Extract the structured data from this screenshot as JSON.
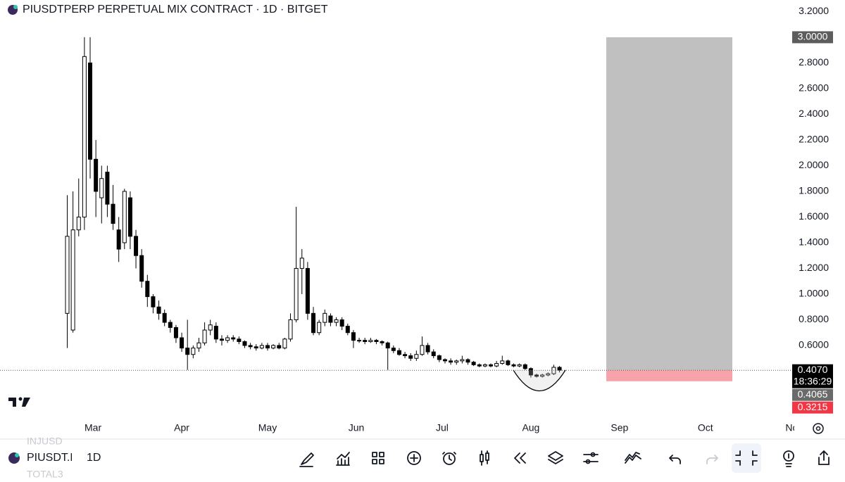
{
  "chart_data": {
    "type": "candlestick",
    "title": "PIUSDTPERP PERPETUAL MIX CONTRACT · 1D · BITGET",
    "x": [
      -9,
      -7,
      -5,
      -3,
      -1,
      1,
      3,
      5,
      7,
      9,
      11,
      13,
      15,
      17,
      19,
      21,
      23,
      25,
      27,
      29,
      31,
      33,
      35,
      37,
      39,
      41,
      43,
      45,
      47,
      49,
      51,
      53,
      55,
      57,
      59,
      61,
      63,
      65,
      67,
      69,
      71,
      73,
      75,
      77,
      79,
      81,
      83,
      85,
      87,
      89,
      91,
      93,
      95,
      97,
      99,
      101,
      103,
      105,
      107,
      109,
      111,
      113,
      115,
      117,
      119,
      121,
      123,
      125,
      127,
      129,
      131,
      133,
      135,
      137,
      139,
      141,
      143,
      145,
      147,
      149,
      151,
      153,
      155,
      157,
      159,
      161,
      163
    ],
    "open": [
      0.85,
      0.72,
      1.5,
      1.6,
      2.8,
      2.05,
      1.75,
      1.95,
      1.7,
      1.5,
      1.4,
      1.75,
      1.45,
      1.3,
      1.1,
      0.98,
      0.9,
      0.85,
      0.78,
      0.74,
      0.66,
      0.58,
      0.53,
      0.58,
      0.62,
      0.72,
      0.75,
      0.65,
      0.64,
      0.66,
      0.65,
      0.63,
      0.6,
      0.59,
      0.58,
      0.6,
      0.58,
      0.6,
      0.58,
      0.65,
      0.8,
      1.2,
      1.2,
      0.85,
      0.7,
      0.78,
      0.83,
      0.78,
      0.8,
      0.75,
      0.7,
      0.64,
      0.64,
      0.63,
      0.64,
      0.63,
      0.62,
      0.58,
      0.56,
      0.53,
      0.52,
      0.5,
      0.53,
      0.6,
      0.55,
      0.52,
      0.49,
      0.48,
      0.47,
      0.48,
      0.49,
      0.47,
      0.45,
      0.44,
      0.45,
      0.44,
      0.46,
      0.48,
      0.45,
      0.44,
      0.45,
      0.42,
      0.37,
      0.36,
      0.37,
      0.38,
      0.43
    ],
    "high": [
      1.77,
      1.8,
      1.9,
      3.0,
      3.0,
      2.2,
      2.0,
      2.0,
      1.85,
      1.6,
      1.82,
      1.8,
      1.5,
      1.35,
      1.15,
      1.0,
      0.95,
      0.88,
      0.8,
      0.76,
      0.7,
      0.8,
      0.6,
      0.66,
      0.78,
      0.8,
      0.78,
      0.68,
      0.68,
      0.68,
      0.67,
      0.64,
      0.62,
      0.61,
      0.62,
      0.62,
      0.61,
      0.62,
      0.66,
      0.85,
      1.68,
      1.35,
      1.25,
      0.9,
      0.8,
      0.88,
      0.85,
      0.82,
      0.82,
      0.77,
      0.72,
      0.66,
      0.66,
      0.66,
      0.65,
      0.64,
      0.63,
      0.6,
      0.58,
      0.55,
      0.54,
      0.56,
      0.67,
      0.62,
      0.57,
      0.53,
      0.5,
      0.5,
      0.49,
      0.52,
      0.5,
      0.48,
      0.46,
      0.46,
      0.46,
      0.48,
      0.52,
      0.49,
      0.46,
      0.46,
      0.46,
      0.43,
      0.38,
      0.38,
      0.39,
      0.45,
      0.44
    ],
    "low": [
      0.58,
      0.7,
      1.45,
      1.5,
      1.9,
      1.6,
      1.55,
      1.6,
      1.5,
      1.25,
      1.35,
      1.35,
      1.2,
      1.05,
      0.9,
      0.85,
      0.8,
      0.75,
      0.7,
      0.62,
      0.55,
      0.41,
      0.5,
      0.55,
      0.6,
      0.68,
      0.62,
      0.6,
      0.62,
      0.63,
      0.61,
      0.58,
      0.57,
      0.56,
      0.57,
      0.56,
      0.57,
      0.57,
      0.57,
      0.63,
      0.78,
      1.0,
      0.8,
      0.68,
      0.68,
      0.75,
      0.75,
      0.75,
      0.72,
      0.68,
      0.58,
      0.62,
      0.61,
      0.62,
      0.61,
      0.6,
      0.41,
      0.54,
      0.52,
      0.5,
      0.48,
      0.48,
      0.52,
      0.53,
      0.5,
      0.47,
      0.46,
      0.45,
      0.45,
      0.46,
      0.45,
      0.44,
      0.43,
      0.43,
      0.43,
      0.43,
      0.45,
      0.44,
      0.43,
      0.43,
      0.41,
      0.35,
      0.35,
      0.35,
      0.36,
      0.37,
      0.39
    ],
    "close": [
      1.45,
      1.5,
      1.6,
      2.85,
      2.05,
      1.8,
      1.9,
      1.7,
      1.55,
      1.35,
      1.8,
      1.45,
      1.3,
      1.1,
      0.98,
      0.9,
      0.85,
      0.78,
      0.74,
      0.66,
      0.58,
      0.53,
      0.58,
      0.62,
      0.72,
      0.76,
      0.65,
      0.64,
      0.66,
      0.65,
      0.63,
      0.6,
      0.59,
      0.58,
      0.6,
      0.58,
      0.6,
      0.58,
      0.65,
      0.8,
      1.2,
      1.28,
      0.85,
      0.7,
      0.78,
      0.85,
      0.78,
      0.8,
      0.75,
      0.7,
      0.64,
      0.64,
      0.63,
      0.64,
      0.63,
      0.62,
      0.58,
      0.56,
      0.53,
      0.52,
      0.5,
      0.53,
      0.6,
      0.55,
      0.52,
      0.49,
      0.48,
      0.47,
      0.48,
      0.49,
      0.47,
      0.45,
      0.44,
      0.45,
      0.44,
      0.46,
      0.48,
      0.45,
      0.44,
      0.45,
      0.42,
      0.37,
      0.36,
      0.37,
      0.38,
      0.43,
      0.407
    ],
    "up_color": "#ffffff",
    "down_color": "#000000",
    "ylim": [
      0.03,
      3.29
    ],
    "yticks": [
      {
        "value": 0.6,
        "label": "0.6000"
      },
      {
        "value": 0.8,
        "label": "0.8000"
      },
      {
        "value": 1.0,
        "label": "1.0000"
      },
      {
        "value": 1.2,
        "label": "1.2000"
      },
      {
        "value": 1.4,
        "label": "1.4000"
      },
      {
        "value": 1.6,
        "label": "1.6000"
      },
      {
        "value": 1.8,
        "label": "1.8000"
      },
      {
        "value": 2.0,
        "label": "2.0000"
      },
      {
        "value": 2.2,
        "label": "2.2000"
      },
      {
        "value": 2.4,
        "label": "2.4000"
      },
      {
        "value": 2.6,
        "label": "2.6000"
      },
      {
        "value": 2.8,
        "label": "2.8000"
      },
      {
        "value": 3.0,
        "label": "3.0000"
      },
      {
        "value": 3.2,
        "label": "3.2000"
      }
    ],
    "xlim": [
      -32.5,
      248
    ],
    "xticks": [
      {
        "value": 0,
        "label": "Mar"
      },
      {
        "value": 31,
        "label": "Apr"
      },
      {
        "value": 61,
        "label": "May"
      },
      {
        "value": 92,
        "label": "Jun"
      },
      {
        "value": 122,
        "label": "Jul"
      },
      {
        "value": 153,
        "label": "Aug"
      },
      {
        "value": 184,
        "label": "Sep"
      },
      {
        "value": 214,
        "label": "Oct"
      },
      {
        "value": 245,
        "label": "Nov"
      }
    ],
    "price_tags": [
      {
        "value": 3.0,
        "label": "3.0000",
        "color": "#5d5d5d"
      },
      {
        "value": 0.407,
        "label": "0.4070",
        "color": "#000000"
      },
      {
        "value": 0.4065,
        "label": "0.4065",
        "color": "#6a6a6a"
      },
      {
        "value": 0.3215,
        "label": "0.3215",
        "color": "#f23645"
      }
    ],
    "countdown": "18:36:29",
    "position": {
      "target": 3.0,
      "entry": 0.407,
      "stop": 0.3215,
      "profit_color": "#c0c0c0",
      "loss_color": "#f7a3a9"
    }
  },
  "toolbar": {
    "symbol": "PIUSDT.P",
    "interval": "1D",
    "watchlist": [
      "INJUSD",
      "TOTAL3"
    ]
  }
}
